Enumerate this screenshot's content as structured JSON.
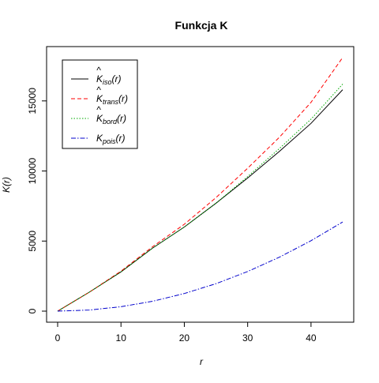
{
  "chart_data": {
    "type": "line",
    "title": "Funkcja K",
    "xlabel": "r",
    "ylabel": "K(r)",
    "xlim": [
      0,
      45
    ],
    "ylim": [
      0,
      18200
    ],
    "x_ticks": [
      0,
      10,
      20,
      30,
      40
    ],
    "y_ticks": [
      0,
      5000,
      10000,
      15000
    ],
    "grid": false,
    "legend_position": "top-left",
    "x": [
      0,
      5,
      10,
      15,
      20,
      25,
      30,
      35,
      40,
      45
    ],
    "series": [
      {
        "name": "iso",
        "legend_main": "K",
        "legend_sub": "iso",
        "hat": true,
        "color": "#000000",
        "dash": "",
        "values": [
          0,
          1350,
          2800,
          4500,
          6000,
          7700,
          9500,
          11400,
          13400,
          15800
        ]
      },
      {
        "name": "trans",
        "legend_main": "K",
        "legend_sub": "trans",
        "hat": true,
        "color": "#ff0000",
        "dash": "5,3",
        "values": [
          0,
          1350,
          2850,
          4600,
          6200,
          8100,
          10200,
          12400,
          14900,
          18100
        ]
      },
      {
        "name": "bord",
        "legend_main": "K",
        "legend_sub": "bord",
        "hat": true,
        "color": "#00aa00",
        "dash": "1.5,2",
        "values": [
          0,
          1350,
          2800,
          4500,
          6000,
          7700,
          9600,
          11600,
          13700,
          16200
        ]
      },
      {
        "name": "pois",
        "legend_main": "K",
        "legend_sub": "pois",
        "hat": false,
        "color": "#0000cc",
        "dash": "6,2,1.5,2",
        "values": [
          0,
          79,
          314,
          707,
          1257,
          1963,
          2827,
          3848,
          5027,
          6362
        ]
      }
    ]
  }
}
